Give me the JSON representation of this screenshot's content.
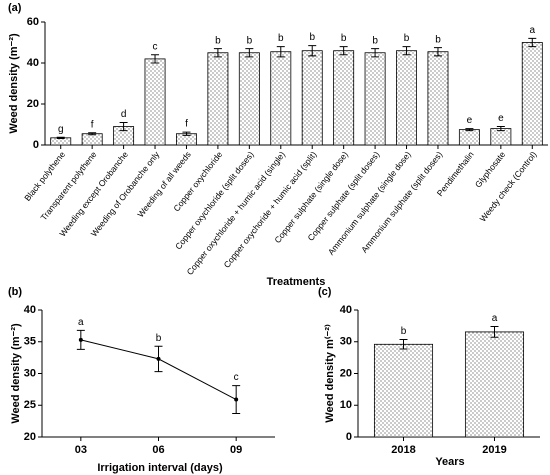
{
  "chart_data": [
    {
      "type": "bar",
      "title": "(a)",
      "ylabel": "Weed density (m⁻²)",
      "xlabel": "Treatments",
      "categories": [
        "Black polythene",
        "Transparent polythene",
        "Weeding except Orobanche",
        "Weeding of Orobanche only",
        "Weeding of all weeds",
        "Copper oxychloride",
        "Copper oxychloride (split doses)",
        "Copper oxychloride + humic acid (single)",
        "Copper oxychoride + humic acid (split)",
        "Copper sulphate (single dose)",
        "Copper sulphate (split doses)",
        "Ammonium sulphate (single dose)",
        "Ammonium sulphate (split doses)",
        "Pendimethalin",
        "Glyphosate",
        "Weedy check (Control)"
      ],
      "values": [
        3.5,
        5.5,
        9,
        42,
        5.5,
        45,
        45,
        45.5,
        46,
        46,
        45,
        46,
        45.5,
        7.5,
        8,
        50
      ],
      "errors": [
        0.3,
        0.5,
        2,
        2,
        0.8,
        2,
        2,
        2.5,
        2.5,
        2,
        2,
        2,
        2,
        0.5,
        1,
        2
      ],
      "letters": [
        "g",
        "f",
        "d",
        "c",
        "f",
        "b",
        "b",
        "b",
        "b",
        "b",
        "b",
        "b",
        "b",
        "e",
        "e",
        "a"
      ],
      "color": "#000000",
      "ylim": [
        0,
        60
      ],
      "yticks": [
        0,
        20,
        40,
        60
      ]
    },
    {
      "type": "line",
      "title": "(b)",
      "ylabel": "Weed density (m⁻²)",
      "xlabel": "Irrigation interval (days)",
      "categories": [
        "03",
        "06",
        "09"
      ],
      "values": [
        35.3,
        32.3,
        25.9
      ],
      "errors": [
        1.5,
        2,
        2.2
      ],
      "letters": [
        "a",
        "b",
        "c"
      ],
      "color": "#000000",
      "ylim": [
        20,
        40
      ],
      "yticks": [
        20,
        25,
        30,
        35,
        40
      ]
    },
    {
      "type": "bar",
      "title": "(c)",
      "ylabel": "Weed density m⁽⁻²⁾",
      "xlabel": "Years",
      "categories": [
        "2018",
        "2019"
      ],
      "values": [
        29.2,
        33.1
      ],
      "errors": [
        1.5,
        1.7
      ],
      "letters": [
        "b",
        "a"
      ],
      "color": "#000000",
      "ylim": [
        0,
        40
      ],
      "yticks": [
        0,
        10,
        20,
        30,
        40
      ]
    }
  ]
}
